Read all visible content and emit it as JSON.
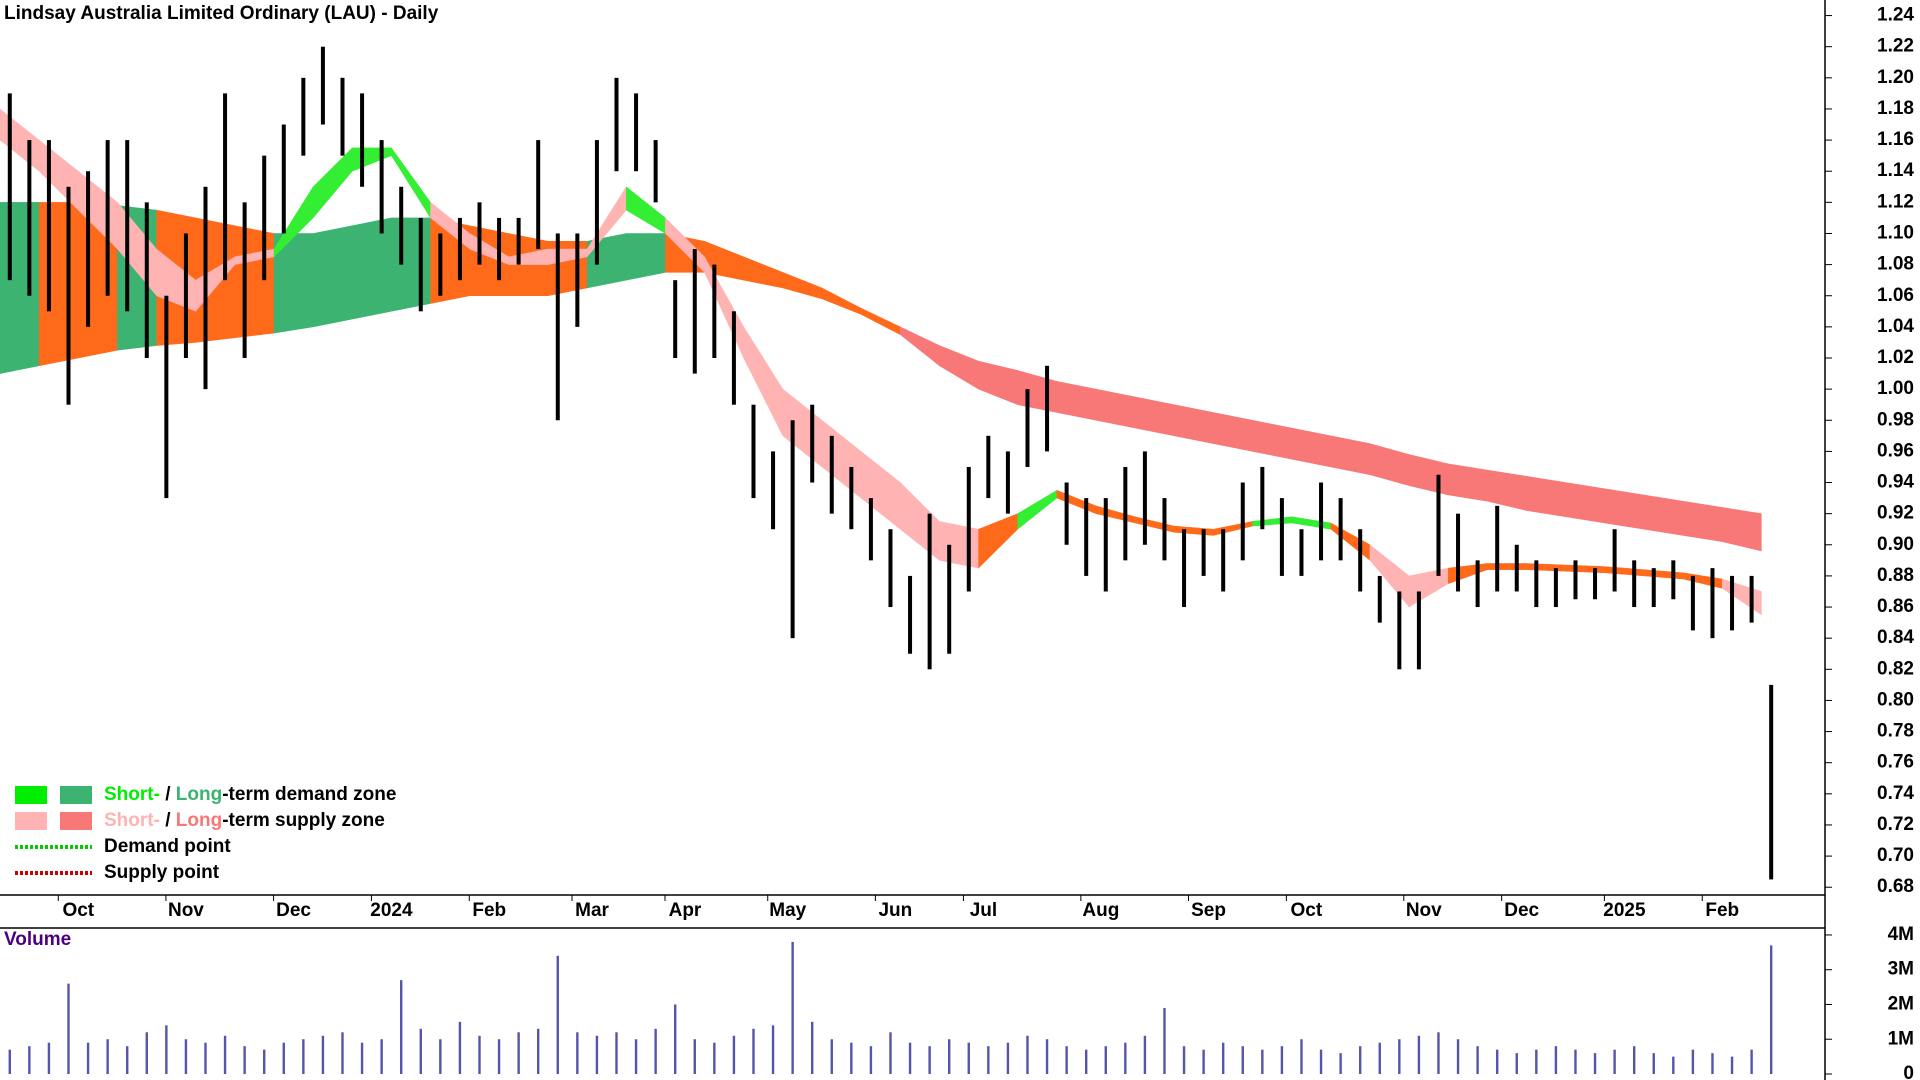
{
  "chart_data": {
    "type": "price-bars",
    "title": "Lindsay Australia Limited Ordinary (LAU) - Daily",
    "xlim": [
      0,
      373
    ],
    "xticks": [
      {
        "value": 16,
        "label": "Oct"
      },
      {
        "value": 38,
        "label": "Nov"
      },
      {
        "value": 60,
        "label": "Dec"
      },
      {
        "value": 80,
        "label": "2024"
      },
      {
        "value": 100,
        "label": "Feb"
      },
      {
        "value": 121,
        "label": "Mar"
      },
      {
        "value": 140,
        "label": "Apr"
      },
      {
        "value": 161,
        "label": "May"
      },
      {
        "value": 183,
        "label": "Jun"
      },
      {
        "value": 201,
        "label": "Jul"
      },
      {
        "value": 225,
        "label": "Aug"
      },
      {
        "value": 247,
        "label": "Sep"
      },
      {
        "value": 267,
        "label": "Oct"
      },
      {
        "value": 291,
        "label": "Nov"
      },
      {
        "value": 311,
        "label": "Dec"
      },
      {
        "value": 332,
        "label": "2025"
      },
      {
        "value": 352,
        "label": "Feb"
      }
    ],
    "ylim": [
      0.675,
      1.25
    ],
    "yticks": [
      0.68,
      {
        "value": 0.7,
        "label": "0.70"
      },
      0.72,
      0.74,
      0.76,
      0.78,
      {
        "value": 0.8,
        "label": "0.80"
      },
      0.82,
      0.84,
      0.86,
      0.88,
      {
        "value": 0.9,
        "label": "0.90"
      },
      0.92,
      0.94,
      0.96,
      0.98,
      {
        "value": 1.0,
        "label": "1.00"
      },
      1.02,
      1.04,
      1.06,
      1.08,
      {
        "value": 1.1,
        "label": "1.10"
      },
      1.12,
      1.14,
      1.16,
      1.18,
      {
        "value": 1.2,
        "label": "1.20"
      },
      1.22,
      1.24
    ],
    "x": [
      2,
      6,
      10,
      14,
      18,
      22,
      26,
      30,
      34,
      38,
      42,
      46,
      50,
      54,
      58,
      62,
      66,
      70,
      74,
      78,
      82,
      86,
      90,
      94,
      98,
      102,
      106,
      110,
      114,
      118,
      122,
      126,
      130,
      134,
      138,
      142,
      146,
      150,
      154,
      158,
      162,
      166,
      170,
      174,
      178,
      182,
      186,
      190,
      194,
      198,
      202,
      206,
      210,
      214,
      218,
      222,
      226,
      230,
      234,
      238,
      242,
      246,
      250,
      254,
      258,
      262,
      266,
      270,
      274,
      278,
      282,
      286,
      290,
      294,
      298,
      302,
      306,
      310,
      314,
      318,
      322,
      326,
      330,
      334,
      338,
      342,
      346,
      350,
      354,
      358,
      362
    ],
    "high": [
      1.19,
      1.16,
      1.16,
      1.13,
      1.14,
      1.16,
      1.16,
      1.12,
      1.06,
      1.1,
      1.13,
      1.19,
      1.12,
      1.15,
      1.17,
      1.2,
      1.22,
      1.2,
      1.19,
      1.16,
      1.13,
      1.11,
      1.1,
      1.11,
      1.12,
      1.11,
      1.11,
      1.16,
      1.1,
      1.1,
      1.16,
      1.2,
      1.19,
      1.16,
      1.07,
      1.09,
      1.08,
      1.05,
      0.99,
      0.96,
      0.98,
      0.99,
      0.97,
      0.95,
      0.93,
      0.91,
      0.88,
      0.92,
      0.9,
      0.95,
      0.97,
      0.96,
      1.0,
      1.015,
      0.94,
      0.93,
      0.93,
      0.95,
      0.96,
      0.93,
      0.91,
      0.91,
      0.91,
      0.94,
      0.95,
      0.93,
      0.91,
      0.94,
      0.93,
      0.91,
      0.88,
      0.87,
      0.87,
      0.945,
      0.92,
      0.89,
      0.925,
      0.9,
      0.89,
      0.885,
      0.89,
      0.885,
      0.91,
      0.89,
      0.885,
      0.89,
      0.88,
      0.885,
      0.88,
      0.88,
      0.81
    ],
    "low": [
      1.07,
      1.06,
      1.05,
      0.99,
      1.04,
      1.06,
      1.05,
      1.02,
      0.93,
      1.02,
      1.0,
      1.07,
      1.02,
      1.07,
      1.1,
      1.15,
      1.17,
      1.15,
      1.13,
      1.1,
      1.08,
      1.05,
      1.06,
      1.07,
      1.08,
      1.07,
      1.08,
      1.09,
      0.98,
      1.04,
      1.08,
      1.14,
      1.14,
      1.12,
      1.02,
      1.01,
      1.02,
      0.99,
      0.93,
      0.91,
      0.84,
      0.94,
      0.92,
      0.91,
      0.89,
      0.86,
      0.83,
      0.82,
      0.83,
      0.87,
      0.93,
      0.92,
      0.95,
      0.96,
      0.9,
      0.88,
      0.87,
      0.89,
      0.9,
      0.89,
      0.86,
      0.88,
      0.87,
      0.89,
      0.91,
      0.88,
      0.88,
      0.89,
      0.89,
      0.87,
      0.85,
      0.82,
      0.82,
      0.88,
      0.87,
      0.86,
      0.87,
      0.87,
      0.86,
      0.86,
      0.865,
      0.865,
      0.87,
      0.86,
      0.86,
      0.865,
      0.845,
      0.84,
      0.845,
      0.85,
      0.685
    ],
    "bar_color": "#000000",
    "bands": [
      {
        "x": [
          0,
          8,
          16,
          24,
          32,
          40,
          48,
          56,
          64,
          72,
          80,
          88,
          96,
          104,
          112,
          120,
          128,
          136,
          144,
          152,
          160,
          168,
          176,
          184,
          192,
          200,
          208,
          216,
          224,
          232,
          240,
          248,
          256,
          264,
          272,
          280,
          288,
          296,
          304,
          312,
          320,
          328,
          336,
          344,
          352,
          360
        ],
        "upper": [
          1.12,
          1.12,
          1.12,
          1.118,
          1.115,
          1.11,
          1.105,
          1.1,
          1.1,
          1.105,
          1.11,
          1.11,
          1.105,
          1.1,
          1.095,
          1.095,
          1.1,
          1.1,
          1.095,
          1.085,
          1.075,
          1.065,
          1.052,
          1.04,
          1.028,
          1.018,
          1.012,
          1.005,
          1.0,
          0.995,
          0.99,
          0.985,
          0.98,
          0.975,
          0.97,
          0.965,
          0.958,
          0.952,
          0.948,
          0.944,
          0.94,
          0.936,
          0.932,
          0.928,
          0.924,
          0.92
        ],
        "lower": [
          1.01,
          1.015,
          1.02,
          1.025,
          1.028,
          1.03,
          1.033,
          1.036,
          1.04,
          1.045,
          1.05,
          1.055,
          1.06,
          1.06,
          1.06,
          1.065,
          1.07,
          1.075,
          1.075,
          1.07,
          1.065,
          1.058,
          1.048,
          1.035,
          1.015,
          1.0,
          0.99,
          0.985,
          0.98,
          0.975,
          0.97,
          0.965,
          0.96,
          0.955,
          0.95,
          0.945,
          0.938,
          0.932,
          0.928,
          0.922,
          0.918,
          0.914,
          0.91,
          0.906,
          0.902,
          0.896
        ],
        "colors": [
          "#3cb371",
          "#ff6a1a",
          "#ff6a1a",
          "#3cb371",
          "#ff6a1a",
          "#ff6a1a",
          "#ff6a1a",
          "#3cb371",
          "#3cb371",
          "#3cb371",
          "#3cb371",
          "#ff6a1a",
          "#ff6a1a",
          "#ff6a1a",
          "#ff6a1a",
          "#3cb371",
          "#3cb371",
          "#ff6a1a",
          "#ff6a1a",
          "#ff6a1a",
          "#ff6a1a",
          "#ff6a1a",
          "#ff6a1a",
          "#f87878",
          "#f87878",
          "#f87878",
          "#f87878",
          "#f87878",
          "#f87878",
          "#f87878",
          "#f87878",
          "#f87878",
          "#f87878",
          "#f87878",
          "#f87878",
          "#f87878",
          "#f87878",
          "#f87878",
          "#f87878",
          "#f87878",
          "#f87878",
          "#f87878",
          "#f87878",
          "#f87878",
          "#f87878",
          "#f87878"
        ]
      },
      {
        "x": [
          0,
          8,
          16,
          24,
          32,
          40,
          48,
          56,
          64,
          72,
          80,
          88,
          96,
          104,
          112,
          120,
          128,
          136,
          144,
          152,
          160,
          168,
          176,
          184,
          192,
          200,
          208,
          216,
          224,
          232,
          240,
          248,
          256,
          264,
          272,
          280,
          288,
          296,
          304,
          312,
          320,
          328,
          336,
          344,
          352,
          360
        ],
        "upper": [
          1.18,
          1.16,
          1.14,
          1.12,
          1.09,
          1.07,
          1.085,
          1.09,
          1.13,
          1.155,
          1.155,
          1.12,
          1.1,
          1.085,
          1.09,
          1.09,
          1.13,
          1.11,
          1.085,
          1.04,
          1.0,
          0.98,
          0.96,
          0.94,
          0.915,
          0.91,
          0.92,
          0.935,
          0.925,
          0.918,
          0.912,
          0.91,
          0.915,
          0.918,
          0.914,
          0.9,
          0.88,
          0.885,
          0.888,
          0.888,
          0.887,
          0.886,
          0.884,
          0.882,
          0.878,
          0.87
        ],
        "lower": [
          1.16,
          1.14,
          1.115,
          1.09,
          1.06,
          1.05,
          1.08,
          1.085,
          1.11,
          1.14,
          1.15,
          1.11,
          1.09,
          1.08,
          1.08,
          1.085,
          1.115,
          1.1,
          1.075,
          1.02,
          0.97,
          0.95,
          0.93,
          0.91,
          0.89,
          0.885,
          0.91,
          0.93,
          0.92,
          0.914,
          0.908,
          0.906,
          0.912,
          0.914,
          0.91,
          0.89,
          0.86,
          0.875,
          0.884,
          0.884,
          0.883,
          0.882,
          0.88,
          0.878,
          0.872,
          0.855
        ],
        "colors": [
          "#ffb3b3",
          "#ffb3b3",
          "#ffb3b3",
          "#ffb3b3",
          "#ffb3b3",
          "#ffb3b3",
          "#ffb3b3",
          "#33ee33",
          "#33ee33",
          "#33ee33",
          "#33ee33",
          "#ffb3b3",
          "#ffb3b3",
          "#ffb3b3",
          "#ffb3b3",
          "#ffb3b3",
          "#33ee33",
          "#ffb3b3",
          "#ffb3b3",
          "#ffb3b3",
          "#ffb3b3",
          "#ffb3b3",
          "#ffb3b3",
          "#ffb3b3",
          "#ffb3b3",
          "#ff6a1a",
          "#33ee33",
          "#ff6a1a",
          "#ff6a1a",
          "#ff6a1a",
          "#ff6a1a",
          "#ff6a1a",
          "#33ee33",
          "#33ee33",
          "#ff6a1a",
          "#ffb3b3",
          "#ffb3b3",
          "#ff6a1a",
          "#ff6a1a",
          "#ff6a1a",
          "#ff6a1a",
          "#ff6a1a",
          "#ff6a1a",
          "#ff6a1a",
          "#ffb3b3",
          "#ffb3b3"
        ]
      }
    ],
    "legend": [
      {
        "swatches": [
          "#00ee00",
          "#3cb371"
        ],
        "parts": [
          {
            "text": "Short-",
            "color": "#00ee00"
          },
          {
            "text": " / ",
            "color": "#000000"
          },
          {
            "text": "Long",
            "color": "#3cb371"
          },
          {
            "text": "-term demand zone",
            "color": "#000000"
          }
        ]
      },
      {
        "swatches": [
          "#ffb3b3",
          "#f87878"
        ],
        "parts": [
          {
            "text": "Short-",
            "color": "#ffb3b3"
          },
          {
            "text": " / ",
            "color": "#000000"
          },
          {
            "text": "Long",
            "color": "#f87878"
          },
          {
            "text": "-term supply zone",
            "color": "#000000"
          }
        ]
      },
      {
        "dotted": "#00cc00",
        "parts": [
          {
            "text": "Demand point",
            "color": "#000000"
          }
        ]
      },
      {
        "dotted": "#cc0000",
        "parts": [
          {
            "text": "Supply point",
            "color": "#000000"
          }
        ]
      }
    ],
    "volume": {
      "label": "Volume",
      "label_color": "#4b0082",
      "color": "#5555aa",
      "ylim": [
        0,
        4200000
      ],
      "yticks": [
        0,
        {
          "value": 1000000,
          "label": "1M"
        },
        {
          "value": 2000000,
          "label": "2M"
        },
        {
          "value": 3000000,
          "label": "3M"
        },
        {
          "value": 4000000,
          "label": "4M"
        }
      ],
      "values": [
        700000,
        800000,
        900000,
        2600000,
        900000,
        1000000,
        800000,
        1200000,
        1400000,
        1000000,
        900000,
        1100000,
        800000,
        700000,
        900000,
        1000000,
        1100000,
        1200000,
        900000,
        1000000,
        2700000,
        1300000,
        1000000,
        1500000,
        1100000,
        1000000,
        1200000,
        1300000,
        3400000,
        1200000,
        1100000,
        1200000,
        1000000,
        1300000,
        2000000,
        1000000,
        900000,
        1100000,
        1300000,
        1400000,
        3800000,
        1500000,
        1000000,
        900000,
        800000,
        1200000,
        900000,
        800000,
        1000000,
        900000,
        800000,
        900000,
        1100000,
        1000000,
        800000,
        700000,
        800000,
        900000,
        1100000,
        1900000,
        800000,
        700000,
        900000,
        800000,
        700000,
        800000,
        1000000,
        700000,
        600000,
        800000,
        900000,
        1000000,
        1100000,
        1200000,
        1000000,
        800000,
        700000,
        600000,
        700000,
        800000,
        700000,
        600000,
        700000,
        800000,
        600000,
        500000,
        700000,
        600000,
        500000,
        700000,
        3700000
      ]
    }
  }
}
